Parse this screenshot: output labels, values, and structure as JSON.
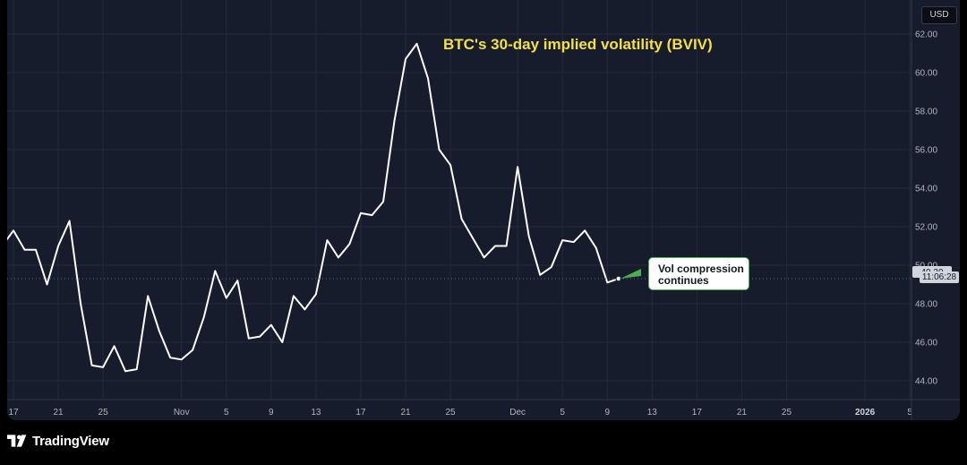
{
  "chart_data": {
    "type": "line",
    "title": "BTC's 30-day implied volatility (BVIV)",
    "currency": "USD",
    "last_value": 49.3,
    "countdown": "11:06:28",
    "annotation": [
      "Vol compression",
      "continues"
    ],
    "ylim": [
      42.5,
      63.0
    ],
    "y_ticks": [
      "62.00",
      "60.00",
      "58.00",
      "56.00",
      "54.00",
      "52.00",
      "50.00",
      "48.00",
      "46.00",
      "44.00"
    ],
    "x_ticks": [
      {
        "label": "17",
        "date": "2025-10-17"
      },
      {
        "label": "21",
        "date": "2025-10-21"
      },
      {
        "label": "25",
        "date": "2025-10-25"
      },
      {
        "label": "Nov",
        "date": "2025-11-01"
      },
      {
        "label": "5",
        "date": "2025-11-05"
      },
      {
        "label": "9",
        "date": "2025-11-09"
      },
      {
        "label": "13",
        "date": "2025-11-13"
      },
      {
        "label": "17",
        "date": "2025-11-17"
      },
      {
        "label": "21",
        "date": "2025-11-21"
      },
      {
        "label": "25",
        "date": "2025-11-25"
      },
      {
        "label": "Dec",
        "date": "2025-12-01"
      },
      {
        "label": "5",
        "date": "2025-12-05"
      },
      {
        "label": "9",
        "date": "2025-12-09"
      },
      {
        "label": "13",
        "date": "2025-12-13"
      },
      {
        "label": "17",
        "date": "2025-12-17"
      },
      {
        "label": "21",
        "date": "2025-12-21"
      },
      {
        "label": "25",
        "date": "2025-12-25"
      },
      {
        "label": "2026",
        "date": "2026-01-01",
        "major": true
      },
      {
        "label": "5",
        "date": "2026-01-05"
      }
    ],
    "x_range": [
      "2025-10-16",
      "2026-01-08"
    ],
    "grid": true,
    "series": [
      {
        "x": [
          "2025-10-16",
          "2025-10-17",
          "2025-10-18",
          "2025-10-19",
          "2025-10-20",
          "2025-10-21",
          "2025-10-22",
          "2025-10-23",
          "2025-10-24",
          "2025-10-25",
          "2025-10-26",
          "2025-10-27",
          "2025-10-28",
          "2025-10-29",
          "2025-10-30",
          "2025-10-31",
          "2025-11-01",
          "2025-11-02",
          "2025-11-03",
          "2025-11-04",
          "2025-11-05",
          "2025-11-06",
          "2025-11-07",
          "2025-11-08",
          "2025-11-09",
          "2025-11-10",
          "2025-11-11",
          "2025-11-12",
          "2025-11-13",
          "2025-11-14",
          "2025-11-15",
          "2025-11-16",
          "2025-11-17",
          "2025-11-18",
          "2025-11-19",
          "2025-11-20",
          "2025-11-21",
          "2025-11-22",
          "2025-11-23",
          "2025-11-24",
          "2025-11-25",
          "2025-11-26",
          "2025-11-27",
          "2025-11-28",
          "2025-11-29",
          "2025-11-30",
          "2025-12-01",
          "2025-12-02",
          "2025-12-03",
          "2025-12-04",
          "2025-12-05",
          "2025-12-06",
          "2025-12-07",
          "2025-12-08",
          "2025-12-09",
          "2025-12-10"
        ],
        "values": [
          51.0,
          51.8,
          50.8,
          50.8,
          49.0,
          51.0,
          52.3,
          48.0,
          44.8,
          44.7,
          45.8,
          44.5,
          44.6,
          48.4,
          46.6,
          45.2,
          45.1,
          45.6,
          47.3,
          49.7,
          48.3,
          49.2,
          46.2,
          46.3,
          46.9,
          46.0,
          48.4,
          47.7,
          48.5,
          51.3,
          50.4,
          51.1,
          52.7,
          52.6,
          53.3,
          57.5,
          60.7,
          61.5,
          59.7,
          56.0,
          55.2,
          52.4,
          51.4,
          50.4,
          51.0,
          51.0,
          55.1,
          51.5,
          49.5,
          49.9,
          51.3,
          51.2,
          51.8,
          50.9,
          49.1,
          49.3
        ]
      }
    ]
  },
  "footer": {
    "brand": "TradingView",
    "logo_icon": "tradingview-logo-icon"
  }
}
